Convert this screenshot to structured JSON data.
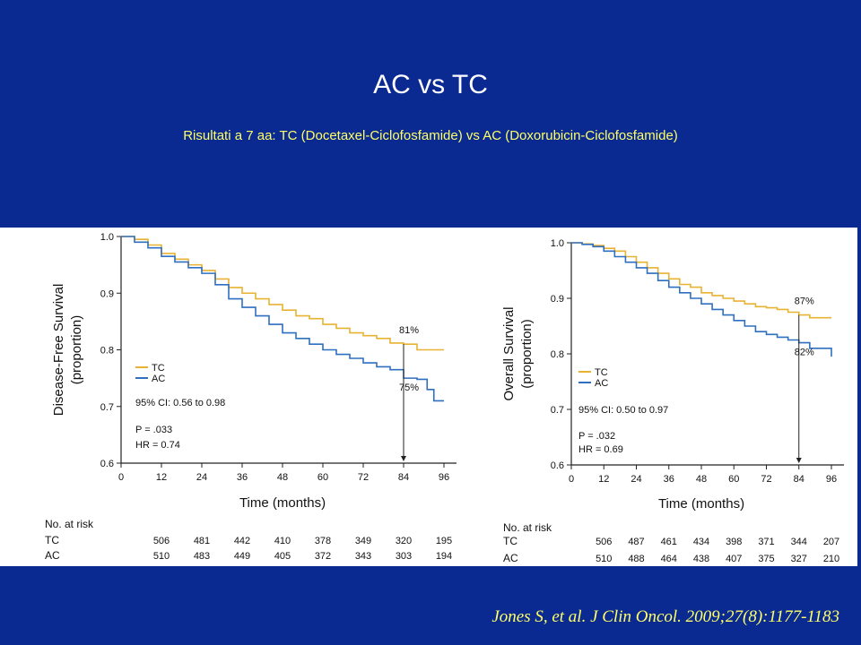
{
  "slide": {
    "title": "AC vs TC",
    "subtitle": "Risultati a 7 aa: TC (Docetaxel-Ciclofosfamide) vs AC (Doxorubicin-Ciclofosfamide)",
    "citation": "Jones S, et al. J Clin Oncol. 2009;27(8):1177-1183",
    "colors": {
      "background": "#0a2a91",
      "title": "#ffffff",
      "subtitle": "#ffff66",
      "citation": "#ffff66",
      "TC": "#e8b232",
      "AC": "#2f6fc0"
    }
  },
  "chart_data": [
    {
      "type": "line",
      "ylabel": "Disease-Free Survival (proportion)",
      "xlabel": "Time (months)",
      "xlim": [
        0,
        96
      ],
      "ylim": [
        0.6,
        1.0
      ],
      "xticks": [
        0,
        12,
        24,
        36,
        48,
        60,
        72,
        84,
        96
      ],
      "yticks": [
        "0.6",
        "0.7",
        "0.8",
        "0.9",
        "1.0"
      ],
      "legend": [
        "TC",
        "AC"
      ],
      "legend_position": "left",
      "ci_text": "95% CI: 0.56 to 0.98",
      "p_text": "P = .033",
      "hr_text": "HR = 0.74",
      "series": [
        {
          "name": "TC",
          "color": "#e8b232",
          "x": [
            0,
            4,
            8,
            12,
            16,
            20,
            24,
            28,
            32,
            36,
            40,
            44,
            48,
            52,
            56,
            60,
            64,
            68,
            72,
            76,
            80,
            84,
            88,
            92,
            96
          ],
          "y": [
            1.0,
            0.995,
            0.985,
            0.97,
            0.96,
            0.95,
            0.94,
            0.925,
            0.91,
            0.9,
            0.89,
            0.88,
            0.87,
            0.86,
            0.855,
            0.845,
            0.838,
            0.83,
            0.825,
            0.82,
            0.812,
            0.81,
            0.8,
            0.8,
            0.8
          ]
        },
        {
          "name": "AC",
          "color": "#2f6fc0",
          "x": [
            0,
            4,
            8,
            12,
            16,
            20,
            24,
            28,
            32,
            36,
            40,
            44,
            48,
            52,
            56,
            60,
            64,
            68,
            72,
            76,
            80,
            84,
            88,
            91,
            93,
            96
          ],
          "y": [
            1.0,
            0.99,
            0.98,
            0.965,
            0.955,
            0.945,
            0.935,
            0.915,
            0.89,
            0.875,
            0.86,
            0.845,
            0.83,
            0.82,
            0.81,
            0.8,
            0.792,
            0.785,
            0.777,
            0.77,
            0.765,
            0.75,
            0.748,
            0.73,
            0.71,
            0.71
          ]
        }
      ],
      "annotations": [
        {
          "label": "81%",
          "x": 84,
          "y": 0.81,
          "series": "TC"
        },
        {
          "label": "75%",
          "x": 84,
          "y": 0.75,
          "series": "AC"
        }
      ],
      "risk_table": {
        "heading": "No. at risk",
        "rows": [
          {
            "label": "TC",
            "values": [
              506,
              481,
              442,
              410,
              378,
              349,
              320,
              195
            ]
          },
          {
            "label": "AC",
            "values": [
              510,
              483,
              449,
              405,
              372,
              343,
              303,
              194
            ]
          }
        ]
      }
    },
    {
      "type": "line",
      "ylabel": "Overall Survival (proportion)",
      "xlabel": "Time (months)",
      "xlim": [
        0,
        96
      ],
      "ylim": [
        0.6,
        1.0
      ],
      "xticks": [
        0,
        12,
        24,
        36,
        48,
        60,
        72,
        84,
        96
      ],
      "yticks": [
        "0.6",
        "0.7",
        "0.8",
        "0.9",
        "1.0"
      ],
      "legend": [
        "TC",
        "AC"
      ],
      "legend_position": "left",
      "ci_text": "95% CI: 0.50 to 0.97",
      "p_text": "P = .032",
      "hr_text": "HR = 0.69",
      "series": [
        {
          "name": "TC",
          "color": "#e8b232",
          "x": [
            0,
            4,
            8,
            12,
            16,
            20,
            24,
            28,
            32,
            36,
            40,
            44,
            48,
            52,
            56,
            60,
            64,
            68,
            72,
            76,
            80,
            84,
            88,
            92,
            96
          ],
          "y": [
            1.0,
            0.998,
            0.995,
            0.99,
            0.985,
            0.975,
            0.965,
            0.955,
            0.945,
            0.935,
            0.925,
            0.92,
            0.91,
            0.905,
            0.9,
            0.895,
            0.89,
            0.885,
            0.883,
            0.88,
            0.875,
            0.87,
            0.865,
            0.865,
            0.865
          ]
        },
        {
          "name": "AC",
          "color": "#2f6fc0",
          "x": [
            0,
            4,
            8,
            12,
            16,
            20,
            24,
            28,
            32,
            36,
            40,
            44,
            48,
            52,
            56,
            60,
            64,
            68,
            72,
            76,
            80,
            84,
            88,
            92,
            95,
            96
          ],
          "y": [
            1.0,
            0.997,
            0.993,
            0.985,
            0.975,
            0.965,
            0.955,
            0.945,
            0.932,
            0.92,
            0.91,
            0.9,
            0.89,
            0.88,
            0.87,
            0.86,
            0.85,
            0.84,
            0.835,
            0.83,
            0.825,
            0.82,
            0.81,
            0.81,
            0.81,
            0.795
          ]
        }
      ],
      "annotations": [
        {
          "label": "87%",
          "x": 84,
          "y": 0.87,
          "series": "TC"
        },
        {
          "label": "82%",
          "x": 84,
          "y": 0.82,
          "series": "AC"
        }
      ],
      "risk_table": {
        "heading": "No. at risk",
        "rows": [
          {
            "label": "TC",
            "values": [
              506,
              487,
              461,
              434,
              398,
              371,
              344,
              207
            ]
          },
          {
            "label": "AC",
            "values": [
              510,
              488,
              464,
              438,
              407,
              375,
              327,
              210
            ]
          }
        ]
      }
    }
  ]
}
